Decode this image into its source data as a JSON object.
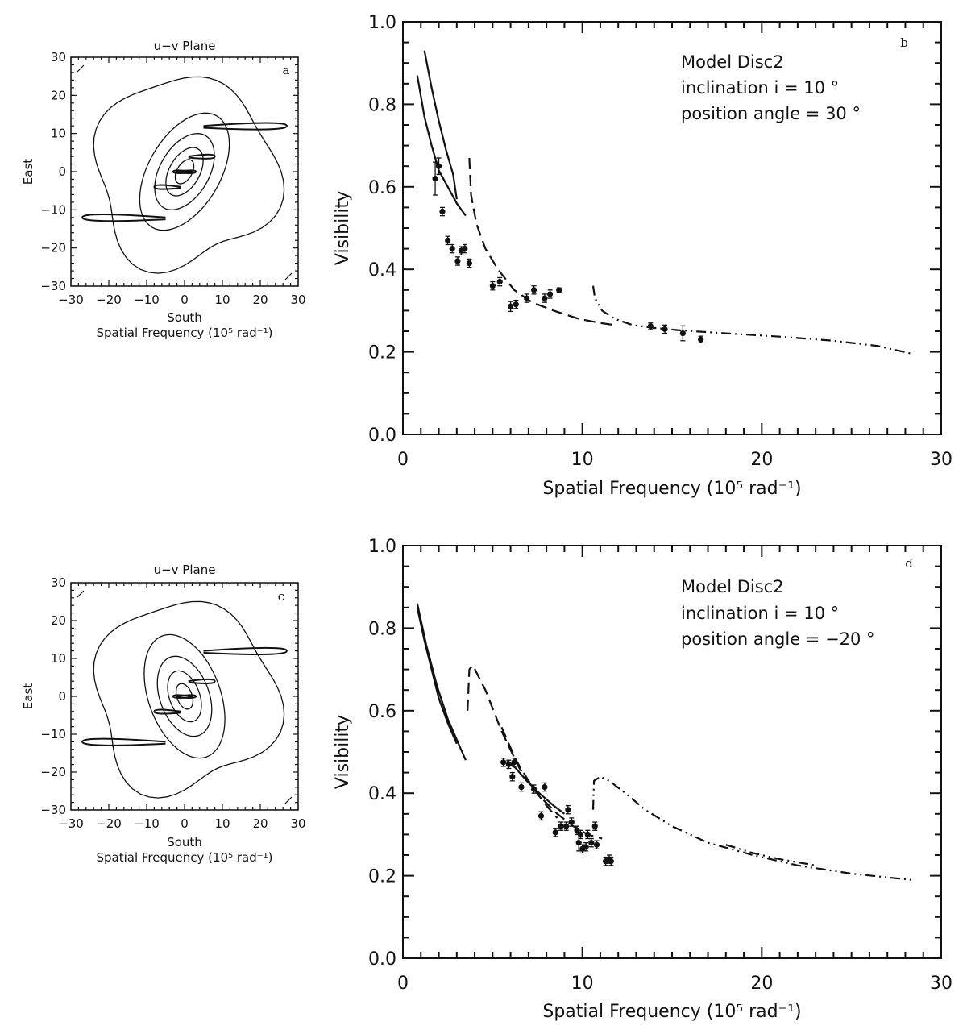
{
  "figure": {
    "panels": [
      {
        "panel": "a",
        "title": "u−v Plane",
        "xlabel": "South",
        "xlabel2": "Spatial Frequency (10⁵ rad⁻¹)",
        "ylabel": "East",
        "ticks": [
          "−30",
          "−20",
          "−10",
          "0",
          "10",
          "20",
          "30"
        ],
        "position_angle_deg": 30
      },
      {
        "panel": "c",
        "title": "u−v Plane",
        "xlabel": "South",
        "xlabel2": "Spatial Frequency (10⁵ rad⁻¹)",
        "ylabel": "East",
        "ticks": [
          "−30",
          "−20",
          "−10",
          "0",
          "10",
          "20",
          "30"
        ],
        "position_angle_deg": -20
      }
    ]
  },
  "chart_data": [
    {
      "panel": "b",
      "type": "line",
      "title": "",
      "xlabel": "Spatial Frequency (10⁵ rad⁻¹)",
      "ylabel": "Visibility",
      "xlim": [
        0,
        30
      ],
      "ylim": [
        0.0,
        1.0
      ],
      "xticks": [
        "0",
        "10",
        "20",
        "30"
      ],
      "yticks": [
        "0.0",
        "0.2",
        "0.4",
        "0.6",
        "0.8",
        "1.0"
      ],
      "annotation": [
        "Model Disc2",
        "inclination i =  10 °",
        "position angle =  30 °"
      ],
      "series": [
        {
          "style": "solid",
          "x": [
            1.2,
            1.6,
            2.0,
            2.4,
            2.8,
            3.0
          ],
          "y": [
            0.93,
            0.84,
            0.76,
            0.69,
            0.63,
            0.57
          ]
        },
        {
          "style": "solid",
          "x": [
            0.8,
            1.2,
            1.6,
            2.0,
            2.5,
            3.0,
            3.5
          ],
          "y": [
            0.87,
            0.77,
            0.7,
            0.64,
            0.6,
            0.56,
            0.53
          ]
        },
        {
          "style": "dashed",
          "x": [
            3.7,
            3.8,
            4.1,
            4.6,
            5.3,
            6.2,
            7.2,
            8.4,
            9.8,
            11.0,
            11.8
          ],
          "y": [
            0.67,
            0.58,
            0.51,
            0.45,
            0.4,
            0.35,
            0.32,
            0.3,
            0.28,
            0.27,
            0.265
          ]
        },
        {
          "style": "dash-dot-dot",
          "x": [
            10.6,
            10.7,
            11.1,
            11.8,
            12.8,
            14.0,
            15.5,
            18.0,
            21.0,
            24.0,
            26.5,
            28.3
          ],
          "y": [
            0.36,
            0.33,
            0.3,
            0.28,
            0.265,
            0.258,
            0.252,
            0.245,
            0.237,
            0.227,
            0.214,
            0.196
          ]
        }
      ],
      "points": [
        {
          "x": 1.8,
          "y": 0.62,
          "err": 0.04
        },
        {
          "x": 2.0,
          "y": 0.65,
          "err": 0.02
        },
        {
          "x": 2.2,
          "y": 0.54,
          "err": 0.01
        },
        {
          "x": 2.5,
          "y": 0.47,
          "err": 0.01
        },
        {
          "x": 2.75,
          "y": 0.45,
          "err": 0.01
        },
        {
          "x": 3.05,
          "y": 0.42,
          "err": 0.01
        },
        {
          "x": 3.25,
          "y": 0.445,
          "err": 0.01
        },
        {
          "x": 3.45,
          "y": 0.45,
          "err": 0.01
        },
        {
          "x": 3.7,
          "y": 0.415,
          "err": 0.01
        },
        {
          "x": 5.0,
          "y": 0.36,
          "err": 0.01
        },
        {
          "x": 5.4,
          "y": 0.37,
          "err": 0.01
        },
        {
          "x": 6.0,
          "y": 0.31,
          "err": 0.012
        },
        {
          "x": 6.3,
          "y": 0.315,
          "err": 0.01
        },
        {
          "x": 6.9,
          "y": 0.33,
          "err": 0.01
        },
        {
          "x": 7.3,
          "y": 0.35,
          "err": 0.01
        },
        {
          "x": 7.9,
          "y": 0.33,
          "err": 0.01
        },
        {
          "x": 8.2,
          "y": 0.34,
          "err": 0.01
        },
        {
          "x": 8.7,
          "y": 0.35,
          "err": 0.005
        },
        {
          "x": 13.8,
          "y": 0.262,
          "err": 0.008
        },
        {
          "x": 14.6,
          "y": 0.255,
          "err": 0.01
        },
        {
          "x": 15.6,
          "y": 0.245,
          "err": 0.018
        },
        {
          "x": 16.6,
          "y": 0.23,
          "err": 0.008
        }
      ]
    },
    {
      "panel": "d",
      "type": "line",
      "title": "",
      "xlabel": "Spatial Frequency (10⁵ rad⁻¹)",
      "ylabel": "Visibility",
      "xlim": [
        0,
        30
      ],
      "ylim": [
        0.0,
        1.0
      ],
      "xticks": [
        "0",
        "10",
        "20",
        "30"
      ],
      "yticks": [
        "0.0",
        "0.2",
        "0.4",
        "0.6",
        "0.8",
        "1.0"
      ],
      "annotation": [
        "Model Disc2",
        "inclination i =  10 °",
        "position angle = −20 °"
      ],
      "series": [
        {
          "style": "solid",
          "x": [
            0.8,
            1.2,
            1.6,
            2.0,
            2.5,
            3.0
          ],
          "y": [
            0.85,
            0.77,
            0.7,
            0.63,
            0.57,
            0.52
          ]
        },
        {
          "style": "solid",
          "x": [
            0.8,
            1.3,
            1.9,
            2.5,
            3.1,
            3.5
          ],
          "y": [
            0.86,
            0.76,
            0.66,
            0.58,
            0.52,
            0.48
          ]
        },
        {
          "style": "dashed",
          "x": [
            3.6,
            3.7,
            3.9,
            4.6,
            5.5,
            6.5,
            7.3,
            8.0,
            8.6
          ],
          "y": [
            0.6,
            0.7,
            0.71,
            0.65,
            0.55,
            0.46,
            0.41,
            0.37,
            0.34
          ]
        },
        {
          "style": "dashed",
          "x": [
            5.5,
            6.3,
            7.0,
            7.8,
            8.6,
            9.5,
            10.3,
            11.1
          ],
          "y": [
            0.56,
            0.48,
            0.43,
            0.385,
            0.35,
            0.32,
            0.3,
            0.29
          ]
        },
        {
          "style": "solid",
          "x": [
            5.8,
            6.3,
            6.9,
            7.6,
            8.4,
            9.0
          ],
          "y": [
            0.48,
            0.46,
            0.43,
            0.4,
            0.37,
            0.35
          ]
        },
        {
          "style": "dash-dot-dot",
          "x": [
            10.6,
            10.65,
            11.0,
            11.5,
            12.4,
            13.5,
            15.0,
            17.0,
            19.5,
            22.0,
            25.0,
            28.3
          ],
          "y": [
            0.36,
            0.43,
            0.44,
            0.43,
            0.4,
            0.36,
            0.32,
            0.28,
            0.25,
            0.225,
            0.205,
            0.19
          ]
        },
        {
          "style": "dash-dot-dot",
          "x": [
            18.0,
            19.5,
            21.0,
            23.0
          ],
          "y": [
            0.275,
            0.255,
            0.24,
            0.225
          ]
        }
      ],
      "points": [
        {
          "x": 5.6,
          "y": 0.475,
          "err": 0.01
        },
        {
          "x": 5.9,
          "y": 0.47,
          "err": 0.01
        },
        {
          "x": 6.1,
          "y": 0.44,
          "err": 0.01
        },
        {
          "x": 6.2,
          "y": 0.475,
          "err": 0.01
        },
        {
          "x": 6.6,
          "y": 0.415,
          "err": 0.01
        },
        {
          "x": 7.3,
          "y": 0.41,
          "err": 0.01
        },
        {
          "x": 7.7,
          "y": 0.345,
          "err": 0.01
        },
        {
          "x": 7.9,
          "y": 0.415,
          "err": 0.01
        },
        {
          "x": 8.5,
          "y": 0.305,
          "err": 0.01
        },
        {
          "x": 8.8,
          "y": 0.32,
          "err": 0.01
        },
        {
          "x": 9.1,
          "y": 0.32,
          "err": 0.01
        },
        {
          "x": 9.2,
          "y": 0.36,
          "err": 0.01
        },
        {
          "x": 9.4,
          "y": 0.33,
          "err": 0.01
        },
        {
          "x": 9.7,
          "y": 0.31,
          "err": 0.01
        },
        {
          "x": 9.8,
          "y": 0.28,
          "err": 0.02
        },
        {
          "x": 9.9,
          "y": 0.3,
          "err": 0.01
        },
        {
          "x": 10.0,
          "y": 0.265,
          "err": 0.01
        },
        {
          "x": 10.2,
          "y": 0.27,
          "err": 0.01
        },
        {
          "x": 10.3,
          "y": 0.3,
          "err": 0.01
        },
        {
          "x": 10.5,
          "y": 0.28,
          "err": 0.01
        },
        {
          "x": 10.7,
          "y": 0.32,
          "err": 0.01
        },
        {
          "x": 10.8,
          "y": 0.275,
          "err": 0.01
        },
        {
          "x": 11.3,
          "y": 0.235,
          "err": 0.01
        },
        {
          "x": 11.5,
          "y": 0.24,
          "err": 0.01
        },
        {
          "x": 11.6,
          "y": 0.235,
          "err": 0.01
        }
      ]
    }
  ]
}
